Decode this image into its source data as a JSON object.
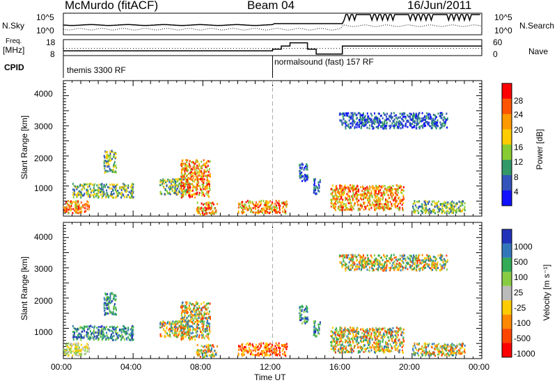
{
  "header": {
    "station": "McMurdo (fitACF)",
    "beam": "Beam 04",
    "date": "16/Jun/2011"
  },
  "sky_panel": {
    "left_label": "N.Sky",
    "right_label": "N.Search",
    "left_ticks": [
      "10^5",
      "10^0"
    ],
    "right_ticks": [
      "10^5",
      "10^0"
    ]
  },
  "freq_panel": {
    "left_label_line1": "Freq.",
    "left_label_line2": "[MHz]",
    "right_label": "Nave",
    "left_ticks": [
      "18",
      "8"
    ],
    "right_ticks": [
      "60",
      "0"
    ]
  },
  "cpid_panel": {
    "label": "CPID",
    "programs": [
      {
        "name": "themis 3300 RF",
        "start_hour": 0
      },
      {
        "name": "normalsound (fast) 157 RF",
        "start_hour": 12
      }
    ]
  },
  "power_panel": {
    "ylabel": "Slant Range [km]",
    "yticks": [
      "4000",
      "3000",
      "2000",
      "1000"
    ],
    "colorbar_label": "Power [dB]",
    "colorbar_ticks": [
      "28",
      "24",
      "20",
      "16",
      "12",
      "8",
      "4"
    ],
    "colorbar_colors": [
      "#ff0000",
      "#ff5500",
      "#ff9900",
      "#ffcc00",
      "#88cc33",
      "#339966",
      "#3355bb",
      "#1111ff"
    ]
  },
  "velocity_panel": {
    "ylabel": "Slant Range [km]",
    "yticks": [
      "4000",
      "3000",
      "2000",
      "1000"
    ],
    "colorbar_label": "Velocity [m s⁻¹]",
    "colorbar_ticks": [
      "1000",
      "500",
      "100",
      "25",
      "-25",
      "-100",
      "-500",
      "-1000"
    ],
    "colorbar_colors": [
      "#2233bb",
      "#3377bb",
      "#33aa55",
      "#88cc44",
      "#bbbbbb",
      "#ffcc00",
      "#ff8800",
      "#ff4400",
      "#ff0000"
    ]
  },
  "x_axis": {
    "ticks": [
      "00:00",
      "04:00",
      "08:00",
      "12:00",
      "16:00",
      "20:00",
      "00:00"
    ],
    "label": "Time UT"
  },
  "chart_data": {
    "type": "heatmap",
    "x_range_hours": [
      0,
      24
    ],
    "y_range_km": [
      180,
      4500
    ],
    "freq_mhz_steps": [
      {
        "from_hour": 0,
        "to_hour": 12,
        "value": 11
      },
      {
        "from_hour": 12,
        "to_hour": 12.5,
        "value": 12
      },
      {
        "from_hour": 12.5,
        "to_hour": 13,
        "value": 14
      },
      {
        "from_hour": 13,
        "to_hour": 13.5,
        "value": 16
      },
      {
        "from_hour": 13.5,
        "to_hour": 14,
        "value": 16
      },
      {
        "from_hour": 14,
        "to_hour": 14.5,
        "value": 12
      },
      {
        "from_hour": 14.5,
        "to_hour": 16,
        "value": 9
      },
      {
        "from_hour": 16,
        "to_hour": 24,
        "value": 14
      }
    ],
    "echo_regions": [
      {
        "t0": 0.0,
        "t1": 1.5,
        "r0": 300,
        "r1": 700,
        "power": "high",
        "velocity": "low"
      },
      {
        "t0": 0.5,
        "t1": 4.0,
        "r0": 800,
        "r1": 1250,
        "power": "mid",
        "velocity": "positive"
      },
      {
        "t0": 2.3,
        "t1": 3.0,
        "r0": 1600,
        "r1": 2300,
        "power": "mid",
        "velocity": "positive"
      },
      {
        "t0": 5.5,
        "t1": 7.2,
        "r0": 900,
        "r1": 1400,
        "power": "mid",
        "velocity": "mixed"
      },
      {
        "t0": 6.7,
        "t1": 8.4,
        "r0": 800,
        "r1": 2000,
        "power": "high",
        "velocity": "mixed"
      },
      {
        "t0": 7.6,
        "t1": 8.8,
        "r0": 250,
        "r1": 650,
        "power": "high",
        "velocity": "mixed"
      },
      {
        "t0": 10.0,
        "t1": 12.8,
        "r0": 300,
        "r1": 700,
        "power": "high",
        "velocity": "negative"
      },
      {
        "t0": 13.5,
        "t1": 14.0,
        "r0": 1300,
        "r1": 1900,
        "power": "low",
        "velocity": "positive"
      },
      {
        "t0": 14.3,
        "t1": 14.7,
        "r0": 900,
        "r1": 1400,
        "power": "low",
        "velocity": "positive"
      },
      {
        "t0": 15.3,
        "t1": 19.5,
        "r0": 400,
        "r1": 1200,
        "power": "high",
        "velocity": "mixed"
      },
      {
        "t0": 15.8,
        "t1": 22.0,
        "r0": 3000,
        "r1": 3500,
        "power": "low",
        "velocity": "mixed"
      },
      {
        "t0": 20.0,
        "t1": 23.0,
        "r0": 300,
        "r1": 700,
        "power": "mid",
        "velocity": "mixed"
      }
    ]
  }
}
